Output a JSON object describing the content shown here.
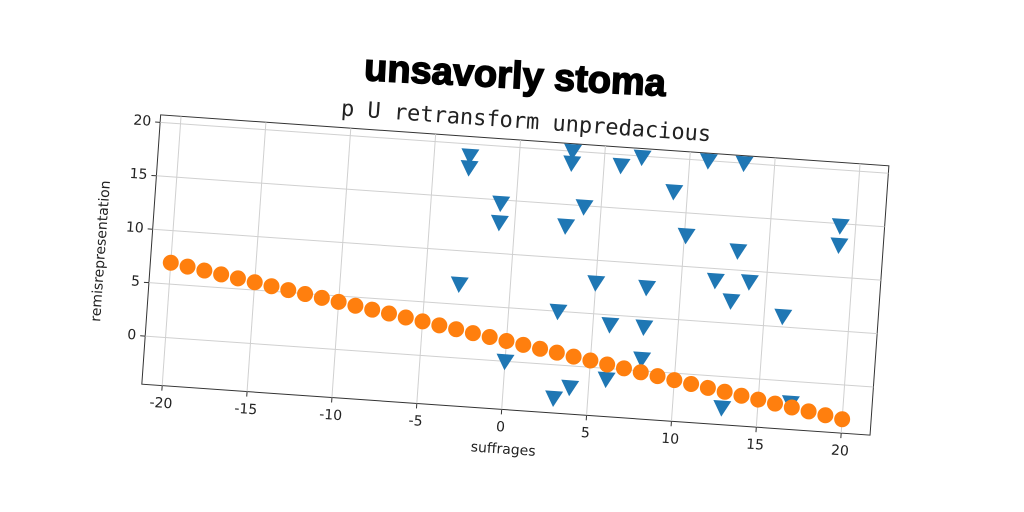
{
  "chart_data": {
    "type": "scatter",
    "title": "unsavorly stoma",
    "subtitle": "p U retransform unpredacious",
    "x_label": "suffrages",
    "y_label": "remisrepresentation",
    "xlim": [
      -21.2,
      21.7
    ],
    "ylim": [
      -4.5,
      20.7
    ],
    "xticks": [
      -20,
      -15,
      -10,
      -5,
      0,
      5,
      10,
      15,
      20
    ],
    "yticks": [
      0,
      5,
      10,
      15,
      20
    ],
    "grid": true,
    "series": [
      {
        "color": "#1f77b4",
        "marker": "triangle-down",
        "x": [
          -2.9,
          -2.9,
          -0.9,
          -0.9,
          -3.0,
          0.0,
          3.1,
          3.1,
          4.0,
          3.0,
          2.9,
          5.0,
          3.9,
          3.0,
          6.0,
          6.0,
          6.0,
          7.2,
          8.0,
          8.0,
          8.0,
          9.2,
          10.1,
          11.1,
          13.2,
          12.0,
          13.0,
          13.2,
          14.0,
          16.1,
          12.9,
          16.9,
          19.1,
          19.1
        ],
        "values": [
          18.9,
          17.8,
          14.7,
          12.9,
          6.9,
          0.0,
          20.0,
          18.9,
          14.9,
          13.0,
          5.0,
          7.9,
          -2.0,
          -3.1,
          4.1,
          -1.0,
          19.0,
          19.9,
          4.1,
          1.1,
          7.8,
          16.9,
          12.9,
          20.0,
          20.0,
          8.9,
          7.1,
          11.8,
          9.0,
          6.0,
          -2.9,
          -2.0,
          14.8,
          13.0
        ]
      },
      {
        "color": "#ff7f0e",
        "marker": "circle",
        "x": [
          -20,
          -19,
          -18,
          -17,
          -16,
          -15,
          -14,
          -13,
          -12,
          -11,
          -10,
          -9,
          -8,
          -7,
          -6,
          -5,
          -4,
          -3,
          -2,
          -1,
          0,
          1,
          2,
          3,
          4,
          5,
          6,
          7,
          8,
          9,
          10,
          11,
          12,
          13,
          14,
          15,
          16,
          17,
          18,
          19,
          20
        ],
        "values": [
          7.0,
          6.75,
          6.49,
          6.24,
          5.98,
          5.73,
          5.47,
          5.22,
          4.96,
          4.71,
          4.45,
          4.2,
          3.94,
          3.69,
          3.43,
          3.18,
          2.92,
          2.67,
          2.41,
          2.16,
          1.9,
          1.65,
          1.39,
          1.14,
          0.88,
          0.63,
          0.37,
          0.12,
          -0.14,
          -0.39,
          -0.65,
          -0.9,
          -1.16,
          -1.41,
          -1.67,
          -1.92,
          -2.18,
          -2.43,
          -2.69,
          -2.94,
          -3.2
        ]
      }
    ]
  }
}
